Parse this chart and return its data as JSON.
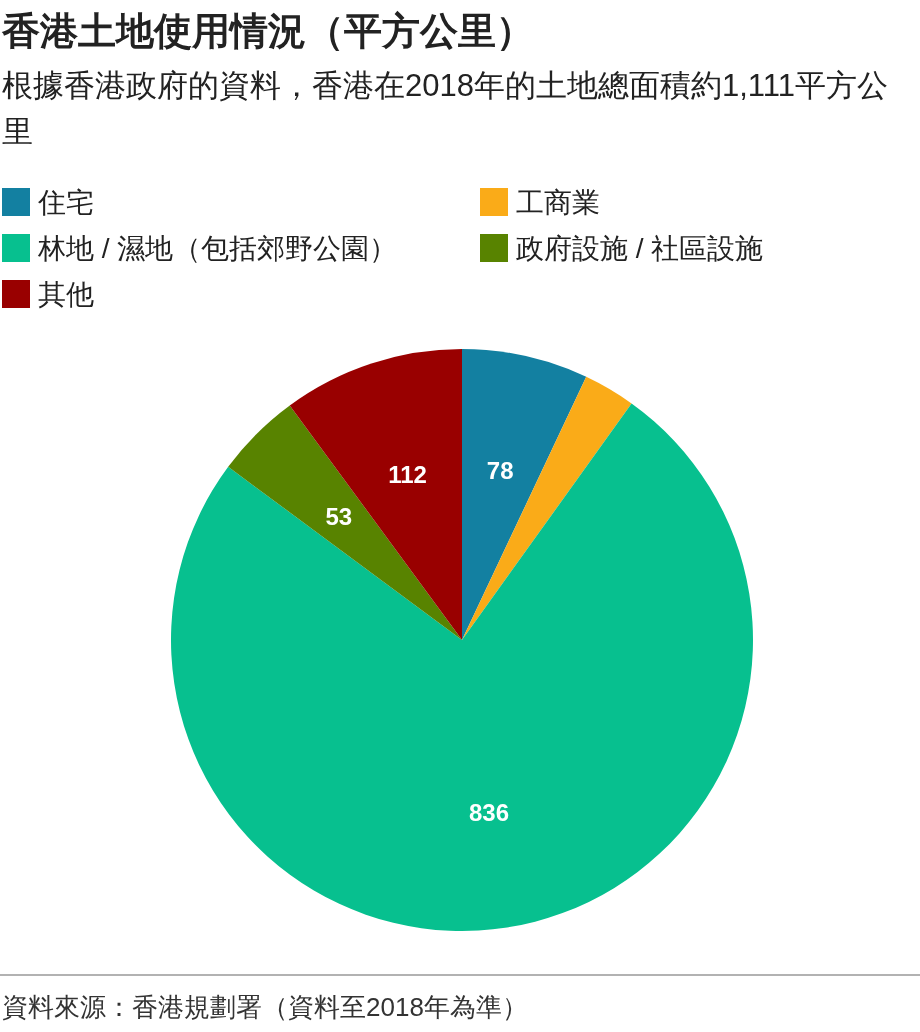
{
  "chart_data": {
    "type": "pie",
    "title": "香港土地使用情況（平方公里）",
    "subtitle": "根據香港政府的資料，香港在2018年的土地總面積約1,111平方公里",
    "categories": [
      "住宅",
      "工商業",
      "林地 / 濕地（包括郊野公園）",
      "政府設施 / 社區設施",
      "其他"
    ],
    "values": [
      78,
      32,
      836,
      53,
      112
    ],
    "value_labels": [
      "78",
      null,
      "836",
      "53",
      "112"
    ],
    "colors": [
      "#1380a1",
      "#faab18",
      "#07c08f",
      "#588300",
      "#990000"
    ],
    "legend": "top",
    "annotations": [
      "資料來源：香港規劃署（資料至2018年為準）"
    ]
  }
}
